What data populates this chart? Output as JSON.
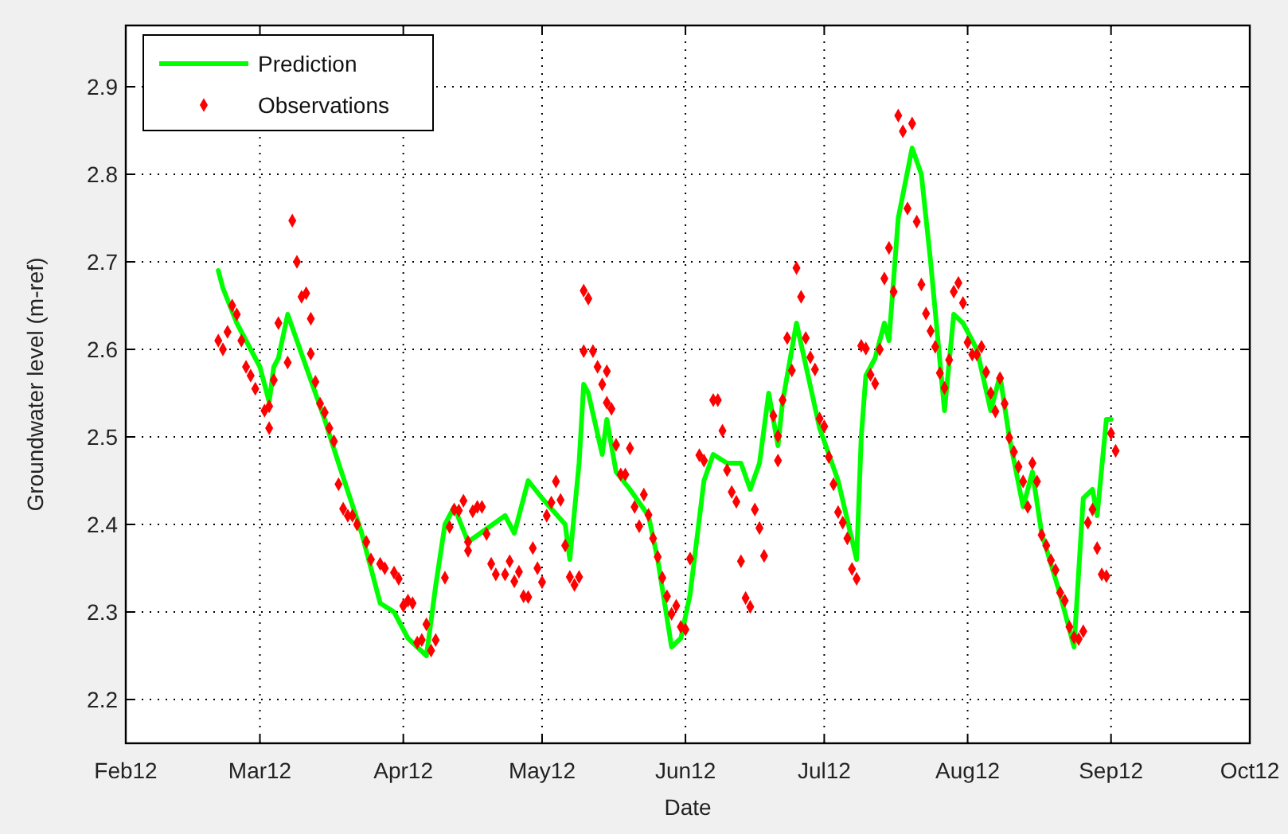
{
  "chart_data": {
    "type": "line",
    "xlabel": "Date",
    "ylabel": "Groundwater level (m-ref)",
    "xlim": [
      "2012-02-01",
      "2012-10-01"
    ],
    "xticks": [
      {
        "value": "2012-02-01",
        "label": "Feb12"
      },
      {
        "value": "2012-03-01",
        "label": "Mar12"
      },
      {
        "value": "2012-04-01",
        "label": "Apr12"
      },
      {
        "value": "2012-05-01",
        "label": "May12"
      },
      {
        "value": "2012-06-01",
        "label": "Jun12"
      },
      {
        "value": "2012-07-01",
        "label": "Jul12"
      },
      {
        "value": "2012-08-01",
        "label": "Aug12"
      },
      {
        "value": "2012-09-01",
        "label": "Sep12"
      },
      {
        "value": "2012-10-01",
        "label": "Oct12"
      }
    ],
    "ylim": [
      2.15,
      2.97
    ],
    "yticks": [
      2.2,
      2.3,
      2.4,
      2.5,
      2.6,
      2.7,
      2.8,
      2.9
    ],
    "grid": true,
    "legend": "top left",
    "series": [
      {
        "name": "Prediction",
        "color": "#00ff00",
        "line_style": "solid",
        "marker": "none",
        "x": [
          "2012-02-21",
          "2012-02-22",
          "2012-02-25",
          "2012-03-01",
          "2012-03-03",
          "2012-03-04",
          "2012-03-05",
          "2012-03-07",
          "2012-03-11",
          "2012-03-15",
          "2012-03-18",
          "2012-03-23",
          "2012-03-27",
          "2012-03-30",
          "2012-04-02",
          "2012-04-06",
          "2012-04-08",
          "2012-04-10",
          "2012-04-12",
          "2012-04-15",
          "2012-04-23",
          "2012-04-25",
          "2012-04-28",
          "2012-05-01",
          "2012-05-06",
          "2012-05-07",
          "2012-05-09",
          "2012-05-10",
          "2012-05-11",
          "2012-05-14",
          "2012-05-15",
          "2012-05-17",
          "2012-05-20",
          "2012-05-24",
          "2012-05-26",
          "2012-05-29",
          "2012-05-31",
          "2012-06-02",
          "2012-06-05",
          "2012-06-07",
          "2012-06-10",
          "2012-06-13",
          "2012-06-15",
          "2012-06-17",
          "2012-06-19",
          "2012-06-21",
          "2012-06-22",
          "2012-06-25",
          "2012-06-30",
          "2012-07-04",
          "2012-07-08",
          "2012-07-09",
          "2012-07-10",
          "2012-07-12",
          "2012-07-14",
          "2012-07-15",
          "2012-07-17",
          "2012-07-20",
          "2012-07-22",
          "2012-07-24",
          "2012-07-27",
          "2012-07-29",
          "2012-07-31",
          "2012-08-03",
          "2012-08-06",
          "2012-08-08",
          "2012-08-10",
          "2012-08-13",
          "2012-08-15",
          "2012-08-17",
          "2012-08-21",
          "2012-08-24",
          "2012-08-26",
          "2012-08-28",
          "2012-08-29",
          "2012-08-31",
          "2012-09-01"
        ],
        "values": [
          2.69,
          2.67,
          2.63,
          2.58,
          2.54,
          2.58,
          2.59,
          2.64,
          2.58,
          2.52,
          2.47,
          2.39,
          2.31,
          2.3,
          2.27,
          2.25,
          2.33,
          2.4,
          2.42,
          2.38,
          2.41,
          2.39,
          2.45,
          2.43,
          2.4,
          2.36,
          2.47,
          2.56,
          2.55,
          2.48,
          2.52,
          2.46,
          2.44,
          2.41,
          2.36,
          2.26,
          2.27,
          2.32,
          2.45,
          2.48,
          2.47,
          2.47,
          2.44,
          2.47,
          2.55,
          2.49,
          2.54,
          2.63,
          2.51,
          2.45,
          2.36,
          2.5,
          2.57,
          2.59,
          2.63,
          2.61,
          2.75,
          2.83,
          2.8,
          2.7,
          2.53,
          2.64,
          2.63,
          2.6,
          2.53,
          2.57,
          2.5,
          2.42,
          2.46,
          2.39,
          2.32,
          2.26,
          2.43,
          2.44,
          2.41,
          2.52,
          2.52
        ]
      },
      {
        "name": "Observations",
        "type": "scatter",
        "color": "#ff0000",
        "marker": "diamond",
        "x": [
          "2012-02-21",
          "2012-02-22",
          "2012-02-23",
          "2012-02-24",
          "2012-02-25",
          "2012-02-26",
          "2012-02-27",
          "2012-02-28",
          "2012-02-29",
          "2012-03-02",
          "2012-03-03",
          "2012-03-03",
          "2012-03-04",
          "2012-03-05",
          "2012-03-07",
          "2012-03-08",
          "2012-03-09",
          "2012-03-10",
          "2012-03-11",
          "2012-03-12",
          "2012-03-12",
          "2012-03-13",
          "2012-03-14",
          "2012-03-15",
          "2012-03-16",
          "2012-03-17",
          "2012-03-18",
          "2012-03-19",
          "2012-03-20",
          "2012-03-21",
          "2012-03-22",
          "2012-03-24",
          "2012-03-25",
          "2012-03-27",
          "2012-03-28",
          "2012-03-30",
          "2012-03-31",
          "2012-04-01",
          "2012-04-02",
          "2012-04-03",
          "2012-04-04",
          "2012-04-05",
          "2012-04-06",
          "2012-04-07",
          "2012-04-08",
          "2012-04-10",
          "2012-04-11",
          "2012-04-12",
          "2012-04-13",
          "2012-04-14",
          "2012-04-15",
          "2012-04-15",
          "2012-04-16",
          "2012-04-17",
          "2012-04-18",
          "2012-04-19",
          "2012-04-20",
          "2012-04-21",
          "2012-04-23",
          "2012-04-24",
          "2012-04-25",
          "2012-04-26",
          "2012-04-27",
          "2012-04-28",
          "2012-04-29",
          "2012-04-30",
          "2012-05-01",
          "2012-05-02",
          "2012-05-03",
          "2012-05-04",
          "2012-05-05",
          "2012-05-06",
          "2012-05-07",
          "2012-05-08",
          "2012-05-09",
          "2012-05-10",
          "2012-05-10",
          "2012-05-11",
          "2012-05-12",
          "2012-05-13",
          "2012-05-14",
          "2012-05-15",
          "2012-05-15",
          "2012-05-16",
          "2012-05-17",
          "2012-05-18",
          "2012-05-19",
          "2012-05-20",
          "2012-05-21",
          "2012-05-22",
          "2012-05-23",
          "2012-05-24",
          "2012-05-25",
          "2012-05-26",
          "2012-05-27",
          "2012-05-28",
          "2012-05-29",
          "2012-05-30",
          "2012-05-31",
          "2012-06-01",
          "2012-06-02",
          "2012-06-04",
          "2012-06-05",
          "2012-06-07",
          "2012-06-08",
          "2012-06-09",
          "2012-06-10",
          "2012-06-11",
          "2012-06-12",
          "2012-06-13",
          "2012-06-14",
          "2012-06-15",
          "2012-06-16",
          "2012-06-17",
          "2012-06-18",
          "2012-06-20",
          "2012-06-21",
          "2012-06-21",
          "2012-06-22",
          "2012-06-23",
          "2012-06-24",
          "2012-06-25",
          "2012-06-26",
          "2012-06-27",
          "2012-06-28",
          "2012-06-29",
          "2012-06-30",
          "2012-07-01",
          "2012-07-02",
          "2012-07-03",
          "2012-07-04",
          "2012-07-05",
          "2012-07-06",
          "2012-07-07",
          "2012-07-08",
          "2012-07-09",
          "2012-07-10",
          "2012-07-11",
          "2012-07-12",
          "2012-07-13",
          "2012-07-14",
          "2012-07-15",
          "2012-07-16",
          "2012-07-17",
          "2012-07-18",
          "2012-07-19",
          "2012-07-20",
          "2012-07-21",
          "2012-07-22",
          "2012-07-23",
          "2012-07-24",
          "2012-07-25",
          "2012-07-26",
          "2012-07-27",
          "2012-07-28",
          "2012-07-29",
          "2012-07-30",
          "2012-07-31",
          "2012-08-01",
          "2012-08-02",
          "2012-08-03",
          "2012-08-04",
          "2012-08-05",
          "2012-08-06",
          "2012-08-07",
          "2012-08-08",
          "2012-08-09",
          "2012-08-10",
          "2012-08-11",
          "2012-08-12",
          "2012-08-13",
          "2012-08-14",
          "2012-08-15",
          "2012-08-16",
          "2012-08-17",
          "2012-08-18",
          "2012-08-19",
          "2012-08-20",
          "2012-08-21",
          "2012-08-22",
          "2012-08-23",
          "2012-08-24",
          "2012-08-25",
          "2012-08-26",
          "2012-08-27",
          "2012-08-28",
          "2012-08-29",
          "2012-08-30",
          "2012-08-31",
          "2012-09-01",
          "2012-09-02"
        ],
        "values": [
          2.61,
          2.6,
          2.62,
          2.65,
          2.64,
          2.61,
          2.58,
          2.57,
          2.555,
          2.53,
          2.535,
          2.51,
          2.565,
          2.63,
          2.585,
          2.747,
          2.7,
          2.66,
          2.664,
          2.635,
          2.595,
          2.563,
          2.538,
          2.528,
          2.51,
          2.495,
          2.446,
          2.418,
          2.41,
          2.41,
          2.4,
          2.38,
          2.36,
          2.355,
          2.35,
          2.345,
          2.338,
          2.307,
          2.313,
          2.31,
          2.265,
          2.268,
          2.286,
          2.256,
          2.268,
          2.339,
          2.397,
          2.417,
          2.416,
          2.427,
          2.38,
          2.37,
          2.415,
          2.42,
          2.42,
          2.389,
          2.355,
          2.343,
          2.343,
          2.358,
          2.335,
          2.346,
          2.318,
          2.317,
          2.373,
          2.35,
          2.334,
          2.41,
          2.425,
          2.449,
          2.428,
          2.376,
          2.34,
          2.331,
          2.34,
          2.598,
          2.667,
          2.658,
          2.598,
          2.58,
          2.56,
          2.575,
          2.539,
          2.532,
          2.491,
          2.457,
          2.457,
          2.487,
          2.42,
          2.398,
          2.434,
          2.411,
          2.384,
          2.363,
          2.339,
          2.318,
          2.298,
          2.307,
          2.283,
          2.28,
          2.361,
          2.479,
          2.473,
          2.542,
          2.542,
          2.507,
          2.462,
          2.437,
          2.426,
          2.358,
          2.316,
          2.306,
          2.417,
          2.396,
          2.364,
          2.524,
          2.501,
          2.473,
          2.542,
          2.613,
          2.576,
          2.693,
          2.66,
          2.613,
          2.591,
          2.577,
          2.521,
          2.512,
          2.477,
          2.446,
          2.414,
          2.402,
          2.384,
          2.349,
          2.338,
          2.604,
          2.601,
          2.571,
          2.561,
          2.6,
          2.681,
          2.716,
          2.666,
          2.867,
          2.849,
          2.761,
          2.858,
          2.746,
          2.674,
          2.641,
          2.621,
          2.603,
          2.573,
          2.556,
          2.588,
          2.666,
          2.676,
          2.653,
          2.608,
          2.594,
          2.594,
          2.603,
          2.574,
          2.55,
          2.529,
          2.567,
          2.538,
          2.499,
          2.483,
          2.466,
          2.449,
          2.42,
          2.47,
          2.449,
          2.388,
          2.376,
          2.359,
          2.348,
          2.322,
          2.313,
          2.283,
          2.271,
          2.269,
          2.278,
          2.402,
          2.417,
          2.373,
          2.343,
          2.341,
          2.504,
          2.484
        ]
      }
    ]
  }
}
